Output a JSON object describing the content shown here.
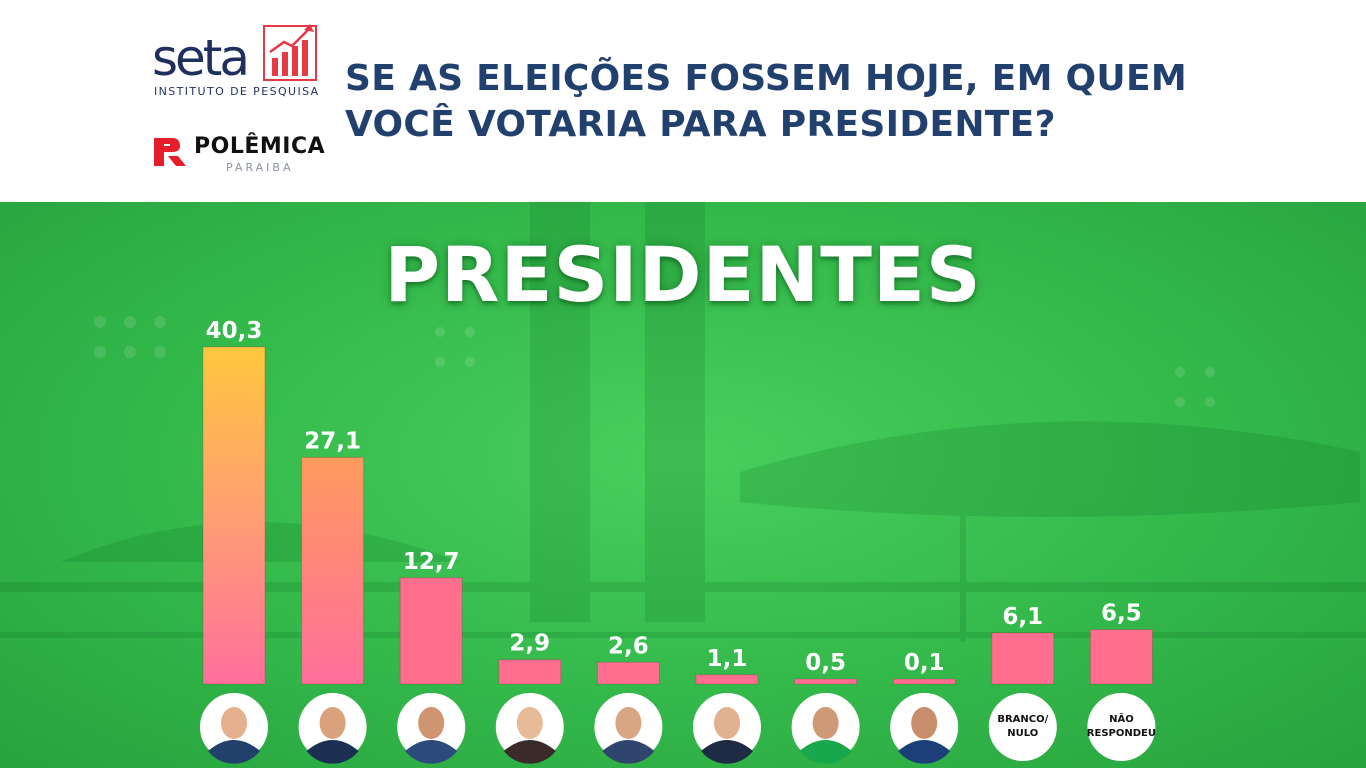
{
  "header": {
    "brand": {
      "seta_name": "seta",
      "seta_tagline": "INSTITUTO DE PESQUISA",
      "polemica_name": "POLÊMICA",
      "polemica_tagline": "PARAIBA"
    },
    "question_line1": "SE AS ELEIÇÕES FOSSEM HOJE, EM QUEM",
    "question_line2": "VOCÊ VOTARIA PARA PRESIDENTE?"
  },
  "headline": "PRESIDENTES",
  "colors": {
    "background_green": "#3cc151",
    "title_blue": "#22406e",
    "bar_top_first": "#ffc73d",
    "bar_bottom": "#ff6f9b",
    "bar_pink": "#ff6e8f",
    "seta_red": "#e63946"
  },
  "chart_data": {
    "type": "bar",
    "title": "PRESIDENTES",
    "xlabel": "",
    "ylabel": "",
    "categories": [
      "candidate-1",
      "candidate-2",
      "candidate-3",
      "candidate-4",
      "candidate-5",
      "candidate-6",
      "candidate-7",
      "candidate-8",
      "BRANCO/ NULO",
      "NÃO RESPONDEU"
    ],
    "values": [
      40.3,
      27.1,
      12.7,
      2.9,
      2.6,
      1.1,
      0.5,
      0.1,
      6.1,
      6.5
    ],
    "value_labels": [
      "40,3",
      "27,1",
      "12,7",
      "2,9",
      "2,6",
      "1,1",
      "0,5",
      "0,1",
      "6,1",
      "6,5"
    ],
    "ylim": [
      0,
      40.3
    ],
    "grid": false,
    "legend": "none",
    "avatar_text": {
      "8": [
        "BRANCO/",
        "NULO"
      ],
      "9": [
        "NÃO",
        "RESPONDEU"
      ]
    }
  }
}
